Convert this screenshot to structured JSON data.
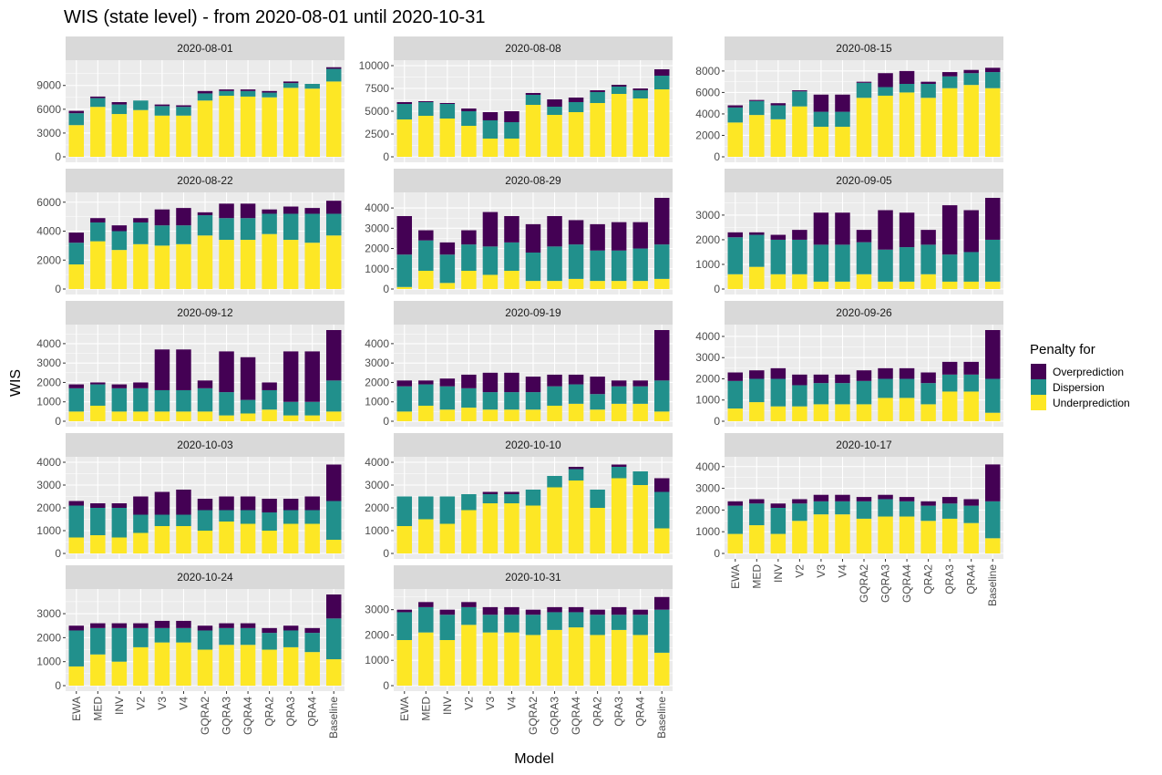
{
  "chart_data": {
    "type": "bar",
    "stacked": true,
    "title": "WIS (state level) - from 2020-08-01 until 2020-10-31",
    "xlabel": "Model",
    "ylabel": "WIS",
    "legend": {
      "title": "Penalty for",
      "position": "right",
      "entries": [
        "Overprediction",
        "Dispersion",
        "Underprediction"
      ]
    },
    "colors": {
      "Overprediction": "#440154",
      "Dispersion": "#21908C",
      "Underprediction": "#FDE725",
      "panel_bg": "#EBEBEB",
      "grid": "#FFFFFF",
      "strip_bg": "#D9D9D9"
    },
    "categories": [
      "EWA",
      "MED",
      "INV",
      "V2",
      "V3",
      "V4",
      "GQRA2",
      "GQRA3",
      "GQRA4",
      "QRA2",
      "QRA3",
      "QRA4",
      "Baseline"
    ],
    "facets": [
      {
        "date": "2020-08-01",
        "ymax": 11500,
        "ticks": [
          0,
          3000,
          6000,
          9000
        ],
        "under": [
          4000,
          6300,
          5400,
          5900,
          5200,
          5200,
          7100,
          7700,
          7600,
          7500,
          8700,
          8600,
          9500
        ],
        "disp": [
          1500,
          1100,
          1200,
          1200,
          1200,
          1100,
          900,
          600,
          700,
          600,
          600,
          600,
          1600
        ],
        "over": [
          300,
          200,
          300,
          0,
          200,
          200,
          300,
          200,
          200,
          200,
          200,
          0,
          200
        ]
      },
      {
        "date": "2020-08-08",
        "ymax": 10000,
        "ticks": [
          0,
          2500,
          5000,
          7500,
          10000
        ],
        "under": [
          4100,
          4500,
          4200,
          3400,
          2000,
          2000,
          5700,
          4600,
          4900,
          5900,
          6900,
          6400,
          7400
        ],
        "disp": [
          1700,
          1500,
          1600,
          1600,
          2000,
          1800,
          1100,
          900,
          1100,
          1200,
          800,
          900,
          1500
        ],
        "over": [
          200,
          100,
          100,
          300,
          900,
          1200,
          200,
          800,
          500,
          200,
          200,
          200,
          700
        ]
      },
      {
        "date": "2020-08-15",
        "ymax": 8500,
        "ticks": [
          0,
          2000,
          4000,
          6000,
          8000
        ],
        "under": [
          3200,
          3900,
          3500,
          4700,
          2800,
          2800,
          5500,
          5700,
          6000,
          5500,
          6400,
          6700,
          6400
        ],
        "disp": [
          1400,
          1300,
          1300,
          1400,
          1400,
          1400,
          1400,
          800,
          800,
          1300,
          1100,
          1100,
          1500
        ],
        "over": [
          200,
          100,
          200,
          100,
          1600,
          1600,
          100,
          1300,
          1200,
          200,
          400,
          300,
          400
        ]
      },
      {
        "date": "2020-08-22",
        "ymax": 6300,
        "ticks": [
          0,
          2000,
          4000,
          6000
        ],
        "under": [
          1700,
          3300,
          2700,
          3100,
          3000,
          3100,
          3700,
          3400,
          3400,
          3800,
          3400,
          3200,
          3700
        ],
        "disp": [
          1500,
          1300,
          1300,
          1500,
          1400,
          1300,
          1400,
          1500,
          1500,
          1400,
          1800,
          2000,
          1500
        ],
        "over": [
          700,
          300,
          400,
          300,
          1100,
          1200,
          200,
          1000,
          1000,
          300,
          500,
          400,
          900
        ]
      },
      {
        "date": "2020-08-29",
        "ymax": 4500,
        "ticks": [
          0,
          1000,
          2000,
          3000,
          4000
        ],
        "under": [
          100,
          900,
          300,
          900,
          700,
          900,
          400,
          400,
          500,
          400,
          400,
          400,
          500
        ],
        "disp": [
          1600,
          1500,
          1400,
          1300,
          1400,
          1400,
          1400,
          1700,
          1700,
          1500,
          1500,
          1600,
          1700
        ],
        "over": [
          1900,
          500,
          600,
          700,
          1700,
          1300,
          1400,
          1500,
          1200,
          1300,
          1400,
          1300,
          2300
        ]
      },
      {
        "date": "2020-09-05",
        "ymax": 3700,
        "ticks": [
          0,
          1000,
          2000,
          3000
        ],
        "under": [
          600,
          900,
          600,
          600,
          300,
          300,
          600,
          300,
          300,
          600,
          300,
          300,
          300
        ],
        "disp": [
          1500,
          1300,
          1400,
          1400,
          1500,
          1500,
          1300,
          1300,
          1400,
          1200,
          1100,
          1200,
          1700
        ],
        "over": [
          200,
          100,
          200,
          400,
          1300,
          1300,
          500,
          1600,
          1400,
          600,
          2000,
          1700,
          1700
        ]
      },
      {
        "date": "2020-09-12",
        "ymax": 4700,
        "ticks": [
          0,
          1000,
          2000,
          3000,
          4000
        ],
        "under": [
          500,
          800,
          500,
          500,
          500,
          500,
          500,
          300,
          400,
          600,
          300,
          300,
          500
        ],
        "disp": [
          1200,
          1100,
          1200,
          1200,
          1100,
          1100,
          1200,
          1200,
          700,
          1000,
          700,
          700,
          1600
        ],
        "over": [
          200,
          100,
          200,
          300,
          2100,
          2100,
          400,
          2100,
          2200,
          400,
          2600,
          2600,
          2600
        ]
      },
      {
        "date": "2020-09-19",
        "ymax": 4700,
        "ticks": [
          0,
          1000,
          2000,
          3000,
          4000
        ],
        "under": [
          500,
          800,
          600,
          700,
          600,
          600,
          600,
          800,
          900,
          600,
          900,
          900,
          500
        ],
        "disp": [
          1300,
          1100,
          1200,
          1000,
          900,
          900,
          900,
          1000,
          1000,
          800,
          900,
          900,
          1600
        ],
        "over": [
          300,
          200,
          400,
          700,
          1000,
          1000,
          800,
          600,
          500,
          900,
          300,
          300,
          2600
        ]
      },
      {
        "date": "2020-09-26",
        "ymax": 4300,
        "ticks": [
          0,
          1000,
          2000,
          3000,
          4000
        ],
        "under": [
          600,
          900,
          700,
          700,
          800,
          800,
          800,
          1100,
          1100,
          800,
          1400,
          1400,
          400
        ],
        "disp": [
          1300,
          1100,
          1300,
          1000,
          1000,
          1000,
          1100,
          900,
          900,
          1000,
          800,
          800,
          1600
        ],
        "over": [
          400,
          400,
          500,
          500,
          400,
          400,
          500,
          500,
          500,
          500,
          600,
          600,
          2300
        ]
      },
      {
        "date": "2020-10-03",
        "ymax": 4000,
        "ticks": [
          0,
          1000,
          2000,
          3000,
          4000
        ],
        "under": [
          700,
          800,
          700,
          900,
          1200,
          1200,
          1000,
          1400,
          1300,
          1000,
          1300,
          1300,
          600
        ],
        "disp": [
          1400,
          1200,
          1300,
          800,
          500,
          500,
          900,
          500,
          600,
          800,
          600,
          600,
          1700
        ],
        "over": [
          200,
          200,
          200,
          800,
          1000,
          1100,
          500,
          600,
          600,
          600,
          500,
          600,
          1600
        ]
      },
      {
        "date": "2020-10-10",
        "ymax": 4000,
        "ticks": [
          0,
          1000,
          2000,
          3000,
          4000
        ],
        "under": [
          1200,
          1500,
          1300,
          1900,
          2200,
          2200,
          2100,
          2900,
          3200,
          2000,
          3300,
          3000,
          1100
        ],
        "disp": [
          1300,
          1000,
          1200,
          700,
          400,
          400,
          700,
          500,
          500,
          800,
          500,
          600,
          1600
        ],
        "over": [
          0,
          0,
          0,
          0,
          100,
          100,
          0,
          0,
          100,
          0,
          100,
          0,
          600
        ]
      },
      {
        "date": "2020-10-17",
        "ymax": 4200,
        "ticks": [
          0,
          1000,
          2000,
          3000,
          4000
        ],
        "under": [
          900,
          1300,
          900,
          1500,
          1800,
          1800,
          1600,
          1700,
          1700,
          1500,
          1600,
          1400,
          700
        ],
        "disp": [
          1300,
          1000,
          1200,
          800,
          600,
          600,
          800,
          800,
          700,
          700,
          700,
          800,
          1700
        ],
        "over": [
          200,
          200,
          200,
          200,
          300,
          300,
          200,
          200,
          200,
          200,
          300,
          300,
          1700
        ]
      },
      {
        "date": "2020-10-24",
        "ymax": 3800,
        "ticks": [
          0,
          1000,
          2000,
          3000
        ],
        "under": [
          800,
          1300,
          1000,
          1600,
          1800,
          1800,
          1500,
          1700,
          1700,
          1500,
          1600,
          1400,
          1100
        ],
        "disp": [
          1500,
          1100,
          1400,
          800,
          600,
          600,
          800,
          700,
          700,
          700,
          700,
          800,
          1700
        ],
        "over": [
          200,
          200,
          200,
          200,
          300,
          300,
          200,
          200,
          200,
          200,
          200,
          200,
          1000
        ]
      },
      {
        "date": "2020-10-31",
        "ymax": 3600,
        "ticks": [
          0,
          1000,
          2000,
          3000
        ],
        "under": [
          1800,
          2100,
          1800,
          2400,
          2100,
          2100,
          2000,
          2200,
          2300,
          2000,
          2200,
          2000,
          1300
        ],
        "disp": [
          1100,
          1000,
          1000,
          700,
          700,
          700,
          800,
          700,
          600,
          800,
          600,
          800,
          1700
        ],
        "over": [
          100,
          200,
          200,
          200,
          300,
          300,
          200,
          200,
          200,
          200,
          300,
          200,
          500
        ]
      }
    ]
  }
}
